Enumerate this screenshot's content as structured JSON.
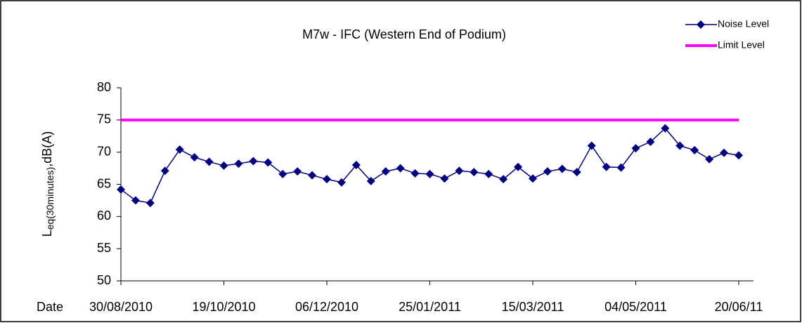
{
  "chart_data": {
    "type": "line",
    "title": "M7w - IFC (Western End of Podium)",
    "x_label": "Date",
    "y_label": {
      "main": "L",
      "sub": "eq(30minutes)",
      "unit": ",dB(A)"
    },
    "categories": [
      "30/08/2010",
      null,
      null,
      null,
      null,
      null,
      null,
      "19/10/2010",
      null,
      null,
      null,
      null,
      null,
      null,
      "06/12/2010",
      null,
      null,
      null,
      null,
      null,
      null,
      "25/01/2011",
      null,
      null,
      null,
      null,
      null,
      null,
      "15/03/2011",
      null,
      null,
      null,
      null,
      null,
      null,
      "04/05/2011",
      null,
      null,
      null,
      null,
      null,
      null,
      "20/06/11"
    ],
    "series": [
      {
        "name": "Noise Level",
        "color": "#000080",
        "marker": "diamond",
        "values": [
          64.2,
          62.5,
          62.1,
          67.1,
          70.4,
          69.2,
          68.5,
          67.9,
          68.2,
          68.6,
          68.4,
          66.6,
          67.0,
          66.4,
          65.8,
          65.3,
          68.0,
          65.5,
          67.0,
          67.5,
          66.7,
          66.6,
          65.9,
          67.1,
          66.9,
          66.6,
          65.8,
          67.7,
          65.9,
          67.0,
          67.4,
          66.9,
          71.0,
          67.7,
          67.6,
          70.6,
          71.6,
          73.7,
          71.0,
          70.3,
          68.9,
          69.9,
          69.5
        ]
      },
      {
        "name": "Limit Level",
        "color": "#ff00ff",
        "values": [
          75,
          75,
          75,
          75,
          75,
          75,
          75,
          75,
          75,
          75,
          75,
          75,
          75,
          75,
          75,
          75,
          75,
          75,
          75,
          75,
          75,
          75,
          75,
          75,
          75,
          75,
          75,
          75,
          75,
          75,
          75,
          75,
          75,
          75,
          75,
          75,
          75,
          75,
          75,
          75,
          75,
          75,
          75
        ]
      }
    ],
    "ylim": [
      50,
      80
    ],
    "yticks": [
      50,
      55,
      60,
      65,
      70,
      75,
      80
    ],
    "legend": "top-right"
  }
}
